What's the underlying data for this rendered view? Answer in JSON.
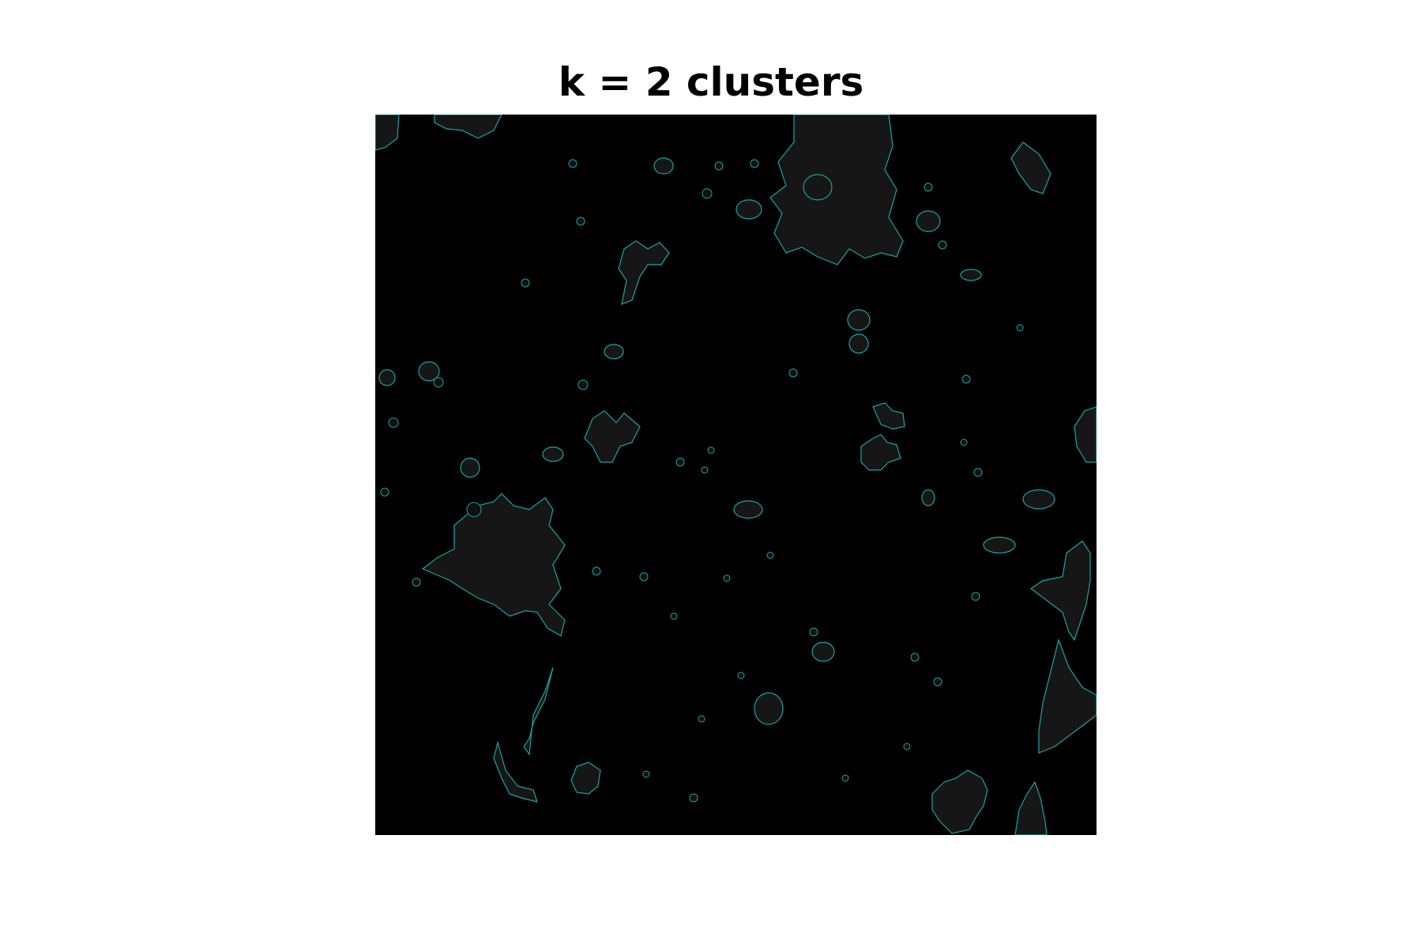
{
  "figure": {
    "title": "k = 2 clusters"
  },
  "image": {
    "description_name": "segmentation-overlay",
    "colors": {
      "background": "#000000",
      "cluster_fill": "#161616",
      "contour": "#1aa3a3",
      "page": "#ffffff"
    }
  }
}
